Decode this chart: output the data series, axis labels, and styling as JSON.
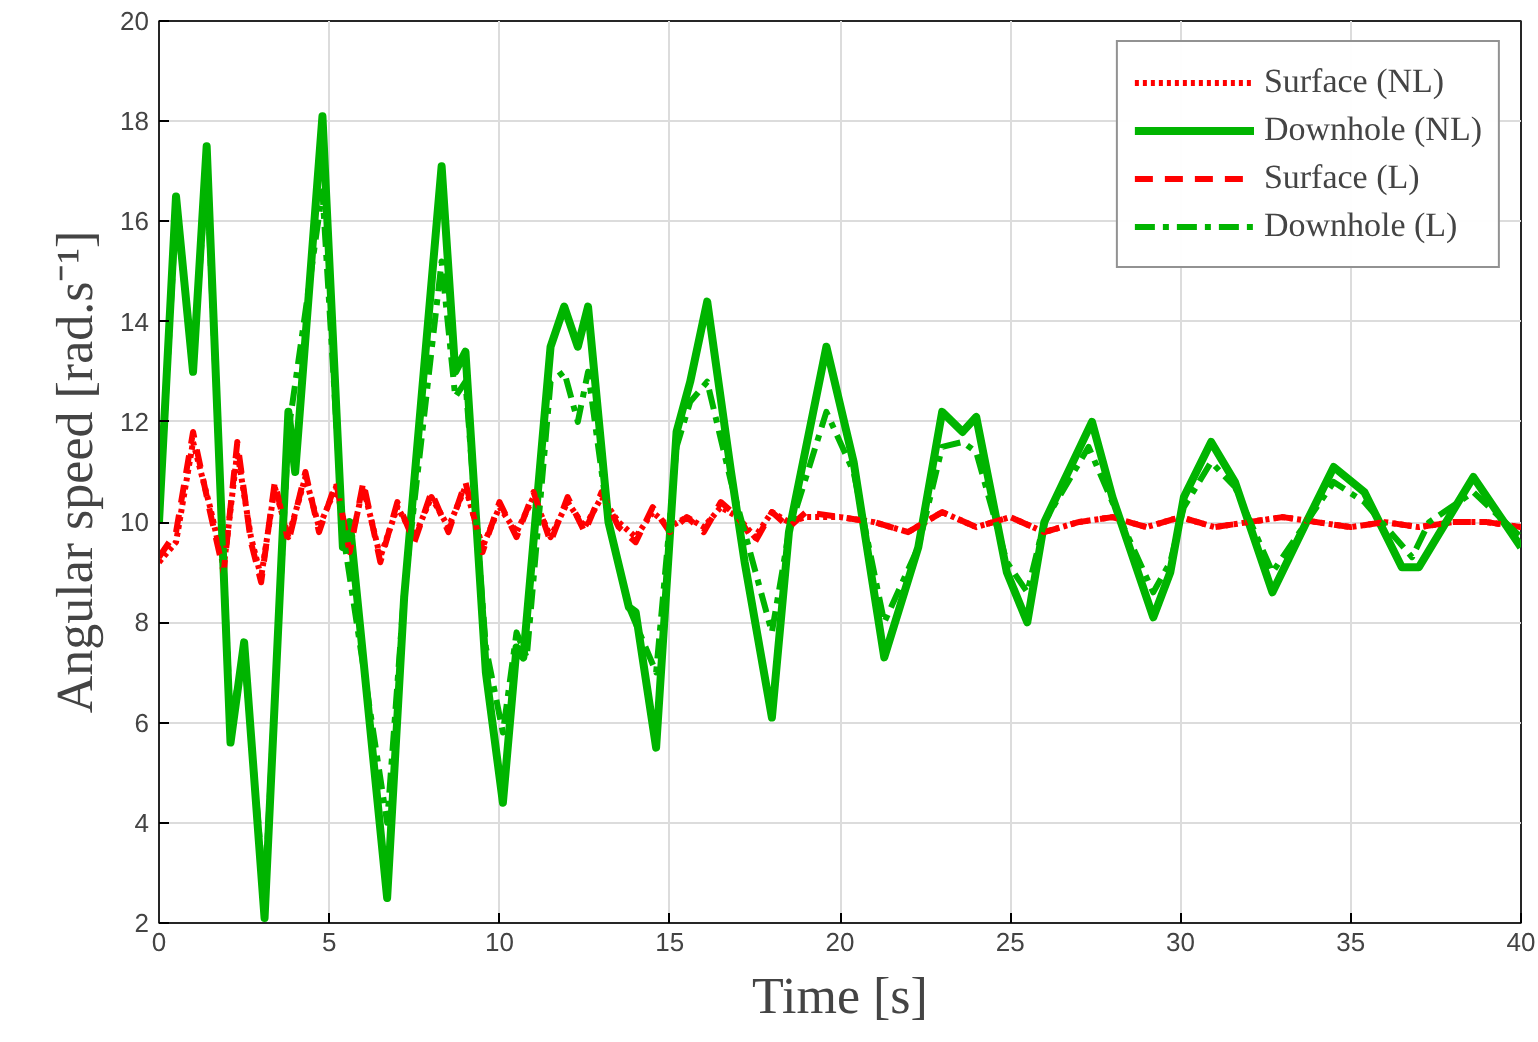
{
  "chart_data": {
    "type": "line",
    "xlabel": "Time [s]",
    "ylabel": "Angular speed [rad.s⁻¹]",
    "xlim": [
      0,
      40
    ],
    "xticks": [
      0,
      5,
      10,
      15,
      20,
      25,
      30,
      35,
      40
    ],
    "ylim": [
      2,
      20
    ],
    "yticks": [
      2,
      4,
      6,
      8,
      10,
      12,
      14,
      16,
      18,
      20
    ],
    "grid": true,
    "legend": "top right",
    "series": [
      {
        "name": "Surface (NL)",
        "color": "#ff0000",
        "line_style": "dotted",
        "x": [
          0,
          0.5,
          1.0,
          1.5,
          1.9,
          2.3,
          2.7,
          3.0,
          3.4,
          3.8,
          4.3,
          4.7,
          5.2,
          5.6,
          6.0,
          6.5,
          7.0,
          7.5,
          8.0,
          8.5,
          9.0,
          9.5,
          10.0,
          10.5,
          11,
          11.5,
          12,
          12.5,
          13,
          13.5,
          14,
          14.5,
          15,
          15.5,
          16,
          16.5,
          17,
          17.5,
          18,
          18.5,
          19,
          20,
          21,
          22,
          23,
          24,
          25,
          26,
          27,
          28,
          29,
          30,
          31,
          32,
          33,
          34,
          35,
          36,
          37,
          38,
          39,
          40
        ],
        "values": [
          9.2,
          9.6,
          11.6,
          10.3,
          9.1,
          11.4,
          9.7,
          8.9,
          10.7,
          9.7,
          10.9,
          9.9,
          10.7,
          9.5,
          10.7,
          9.3,
          10.3,
          9.7,
          10.5,
          9.9,
          10.7,
          9.5,
          10.3,
          9.8,
          10.5,
          9.7,
          10.4,
          9.9,
          10.5,
          10.0,
          9.7,
          10.2,
          9.9,
          10.1,
          9.9,
          10.3,
          10.1,
          9.7,
          10.2,
          10.0,
          10.1,
          10.1,
          10.0,
          9.8,
          10.2,
          9.9,
          10.1,
          9.8,
          10.0,
          10.1,
          9.9,
          10.1,
          9.9,
          10.0,
          10.1,
          10.0,
          9.9,
          10.0,
          9.9,
          10.0,
          10.0,
          9.9
        ]
      },
      {
        "name": "Downhole (NL)",
        "color": "#00b400",
        "line_style": "solid",
        "x": [
          0,
          0.5,
          1.0,
          1.4,
          2.1,
          2.5,
          3.1,
          3.8,
          4.0,
          4.8,
          5.4,
          5.6,
          6.7,
          7.2,
          8.3,
          8.7,
          9.0,
          9.6,
          10.1,
          10.5,
          10.7,
          11.5,
          11.9,
          12.3,
          12.6,
          13.2,
          13.8,
          14.0,
          14.6,
          15.2,
          15.6,
          16.1,
          16.8,
          17.2,
          18.0,
          18.5,
          19.6,
          20.4,
          21.3,
          22.3,
          23.0,
          23.6,
          24.0,
          24.9,
          25.5,
          26.0,
          27.4,
          28.0,
          29.2,
          29.7,
          30.1,
          30.9,
          31.6,
          32.7,
          33.7,
          34.5,
          35.4,
          36.5,
          37.0,
          38.6,
          40
        ],
        "values": [
          10,
          16.5,
          13.0,
          17.5,
          5.6,
          7.6,
          2.1,
          12.2,
          11.0,
          18.1,
          9.5,
          10.0,
          2.5,
          8.5,
          17.1,
          13.0,
          13.4,
          7.0,
          4.4,
          7.5,
          7.3,
          13.5,
          14.3,
          13.5,
          14.3,
          10.0,
          8.3,
          8.2,
          5.5,
          11.8,
          12.8,
          14.4,
          11.0,
          9.2,
          6.1,
          9.8,
          13.5,
          11.2,
          7.3,
          9.5,
          12.2,
          11.8,
          12.1,
          9.0,
          8.0,
          10.0,
          12.0,
          10.5,
          8.1,
          9.0,
          10.5,
          11.6,
          10.8,
          8.6,
          10.0,
          11.1,
          10.6,
          9.1,
          9.1,
          10.9,
          9.5
        ]
      },
      {
        "name": "Surface (L)",
        "color": "#ff0000",
        "line_style": "dashed",
        "x": [
          0,
          0.5,
          1.0,
          1.5,
          1.9,
          2.3,
          2.7,
          3.0,
          3.4,
          3.8,
          4.3,
          4.7,
          5.2,
          5.6,
          6.0,
          6.5,
          7.0,
          7.5,
          8.0,
          8.5,
          9.0,
          9.5,
          10.0,
          10.5,
          11,
          11.5,
          12,
          12.5,
          13,
          13.5,
          14,
          14.5,
          15,
          15.5,
          16,
          16.5,
          17,
          17.5,
          18,
          18.5,
          19,
          20,
          21,
          22,
          23,
          24,
          25,
          26,
          27,
          28,
          29,
          30,
          31,
          32,
          33,
          34,
          35,
          36,
          37,
          38,
          39,
          40
        ],
        "values": [
          9.3,
          9.8,
          11.8,
          10.2,
          9.0,
          11.6,
          9.6,
          8.8,
          10.8,
          9.6,
          11.0,
          9.8,
          10.8,
          9.4,
          10.8,
          9.2,
          10.4,
          9.6,
          10.6,
          9.8,
          10.8,
          9.4,
          10.4,
          9.7,
          10.6,
          9.6,
          10.5,
          9.8,
          10.6,
          9.9,
          9.6,
          10.3,
          9.8,
          10.1,
          9.8,
          10.4,
          10.1,
          9.6,
          10.2,
          9.9,
          10.2,
          10.1,
          10.0,
          9.8,
          10.2,
          9.9,
          10.1,
          9.8,
          10.0,
          10.1,
          9.9,
          10.1,
          9.9,
          10.0,
          10.1,
          10.0,
          9.9,
          10.0,
          9.9,
          10.0,
          10.0,
          9.9
        ]
      },
      {
        "name": "Downhole (L)",
        "color": "#00b400",
        "line_style": "dashdot",
        "x": [
          0,
          0.5,
          1.0,
          1.4,
          2.1,
          2.5,
          3.1,
          3.8,
          4.8,
          5.4,
          6.7,
          7.2,
          8.3,
          8.7,
          9.0,
          9.6,
          10.1,
          10.5,
          10.8,
          11.5,
          11.9,
          12.3,
          12.6,
          13.2,
          13.8,
          14.6,
          15.2,
          15.6,
          16.1,
          16.8,
          17.2,
          18.0,
          18.5,
          19.6,
          20.4,
          21.3,
          22.3,
          23.0,
          23.6,
          24.0,
          24.9,
          25.5,
          26.0,
          27.3,
          28.0,
          29.2,
          29.7,
          30.1,
          30.9,
          31.6,
          32.7,
          33.7,
          34.5,
          35.4,
          36.8,
          37.3,
          38.6,
          40
        ],
        "values": [
          10,
          16.2,
          13.2,
          17.0,
          6.0,
          7.4,
          2.5,
          11.8,
          16.6,
          9.8,
          4.0,
          8.6,
          15.2,
          12.5,
          12.8,
          7.5,
          5.8,
          7.8,
          7.3,
          12.8,
          13.0,
          12.0,
          13.0,
          10.0,
          8.3,
          7.0,
          11.5,
          12.4,
          12.8,
          10.8,
          9.8,
          7.8,
          9.8,
          12.2,
          11.0,
          8.0,
          9.5,
          11.5,
          11.6,
          11.4,
          9.2,
          8.6,
          10.0,
          11.5,
          10.4,
          8.6,
          9.2,
          10.3,
          11.2,
          10.7,
          9.0,
          10.0,
          10.8,
          10.4,
          9.3,
          10.0,
          10.6,
          9.7
        ]
      }
    ]
  }
}
